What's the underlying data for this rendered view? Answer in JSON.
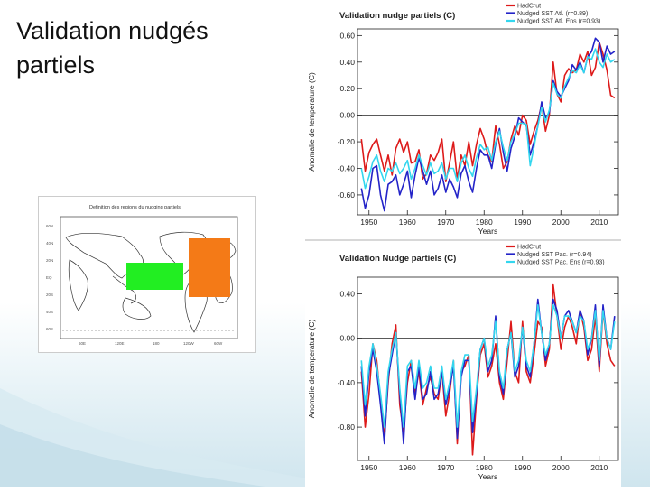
{
  "slide": {
    "title": "Validation nudgés partiels"
  },
  "map": {
    "title": "Definition des regions du nudging partiels",
    "lat_labels": [
      "60N",
      "40N",
      "20N",
      "EQ",
      "20S",
      "40S",
      "60S"
    ],
    "lon_labels": [
      "60E",
      "120E",
      "180",
      "120W",
      "60W"
    ],
    "colors": {
      "pacific": "#22ee22",
      "atlantic": "#f47a17"
    }
  },
  "chart_data": [
    {
      "type": "line",
      "title": "Validation nudge partiels (C)",
      "xlabel": "Years",
      "ylabel": "Anomalie de temperature (C)",
      "xlim": [
        1947,
        2015
      ],
      "ylim": [
        -0.75,
        0.65
      ],
      "yticks": [
        -0.6,
        -0.4,
        -0.2,
        0.0,
        0.2,
        0.4,
        0.6
      ],
      "ytick_labels": [
        "-0.60",
        "-0.40",
        "-0.20",
        "0.00",
        "0.20",
        "0.40",
        "0.60"
      ],
      "xticks": [
        1950,
        1960,
        1970,
        1980,
        1990,
        2000,
        2010
      ],
      "xtick_labels": [
        "1950",
        "1960",
        "1970",
        "1980",
        "1990",
        "2000",
        "2010"
      ],
      "legend_position": "top-right",
      "series": [
        {
          "name": "HadCrut",
          "color": "#dd1a1a",
          "start": 1948,
          "values": [
            -0.18,
            -0.42,
            -0.28,
            -0.22,
            -0.18,
            -0.3,
            -0.42,
            -0.3,
            -0.45,
            -0.25,
            -0.18,
            -0.28,
            -0.2,
            -0.36,
            -0.35,
            -0.26,
            -0.48,
            -0.44,
            -0.3,
            -0.34,
            -0.28,
            -0.18,
            -0.5,
            -0.36,
            -0.2,
            -0.48,
            -0.3,
            -0.38,
            -0.2,
            -0.38,
            -0.22,
            -0.1,
            -0.18,
            -0.3,
            -0.35,
            -0.08,
            -0.22,
            -0.4,
            -0.35,
            -0.18,
            -0.08,
            -0.15,
            0.0,
            -0.04,
            -0.22,
            -0.12,
            -0.04,
            0.08,
            -0.12,
            0.0,
            0.4,
            0.16,
            0.1,
            0.3,
            0.35,
            0.32,
            0.34,
            0.46,
            0.4,
            0.48,
            0.3,
            0.36,
            0.55,
            0.46,
            0.34,
            0.15,
            0.13
          ]
        },
        {
          "name": "Nudged SST Atl. (r=0.89)",
          "color": "#2323c8",
          "start": 1948,
          "values": [
            -0.55,
            -0.7,
            -0.6,
            -0.4,
            -0.38,
            -0.6,
            -0.72,
            -0.52,
            -0.5,
            -0.45,
            -0.6,
            -0.52,
            -0.42,
            -0.62,
            -0.45,
            -0.32,
            -0.42,
            -0.52,
            -0.42,
            -0.6,
            -0.55,
            -0.45,
            -0.58,
            -0.48,
            -0.54,
            -0.62,
            -0.44,
            -0.38,
            -0.5,
            -0.58,
            -0.4,
            -0.26,
            -0.3,
            -0.3,
            -0.4,
            -0.22,
            -0.1,
            -0.28,
            -0.42,
            -0.25,
            -0.16,
            -0.02,
            -0.05,
            -0.08,
            -0.3,
            -0.2,
            -0.08,
            0.1,
            -0.02,
            0.02,
            0.26,
            0.18,
            0.14,
            0.2,
            0.26,
            0.38,
            0.34,
            0.4,
            0.32,
            0.44,
            0.48,
            0.58,
            0.55,
            0.4,
            0.52,
            0.46,
            0.48
          ]
        },
        {
          "name": "Nudged SST Atl. Ens (r=0.93)",
          "color": "#33d6ee",
          "start": 1948,
          "values": [
            -0.4,
            -0.55,
            -0.46,
            -0.35,
            -0.3,
            -0.42,
            -0.5,
            -0.4,
            -0.42,
            -0.36,
            -0.44,
            -0.4,
            -0.34,
            -0.48,
            -0.4,
            -0.3,
            -0.38,
            -0.45,
            -0.36,
            -0.44,
            -0.42,
            -0.36,
            -0.48,
            -0.4,
            -0.4,
            -0.5,
            -0.36,
            -0.3,
            -0.4,
            -0.46,
            -0.32,
            -0.22,
            -0.26,
            -0.24,
            -0.34,
            -0.2,
            -0.12,
            -0.24,
            -0.34,
            -0.2,
            -0.14,
            -0.06,
            -0.06,
            -0.07,
            -0.38,
            -0.24,
            -0.08,
            0.06,
            -0.05,
            0.04,
            0.24,
            0.16,
            0.13,
            0.22,
            0.28,
            0.34,
            0.32,
            0.38,
            0.32,
            0.44,
            0.42,
            0.5,
            0.4,
            0.36,
            0.46,
            0.4,
            0.42
          ]
        }
      ]
    },
    {
      "type": "line",
      "title": "Validation Nudge partiels (C)",
      "xlabel": "Years",
      "ylabel": "Anomalie de temperature (C)",
      "xlim": [
        1947,
        2015
      ],
      "ylim": [
        -1.1,
        0.55
      ],
      "yticks": [
        -0.8,
        -0.4,
        0.0,
        0.4
      ],
      "ytick_labels": [
        "-0.80",
        "-0.40",
        "0.00",
        "0.40"
      ],
      "xticks": [
        1950,
        1960,
        1970,
        1980,
        1990,
        2000,
        2010
      ],
      "xtick_labels": [
        "1950",
        "1960",
        "1970",
        "1980",
        "1990",
        "2000",
        "2010"
      ],
      "legend_position": "top-right",
      "series": [
        {
          "name": "HadCrut",
          "color": "#dd1a1a",
          "start": 1948,
          "values": [
            -0.3,
            -0.8,
            -0.5,
            -0.05,
            -0.2,
            -0.55,
            -0.9,
            -0.4,
            -0.05,
            0.12,
            -0.6,
            -0.85,
            -0.4,
            -0.2,
            -0.5,
            -0.3,
            -0.6,
            -0.45,
            -0.35,
            -0.5,
            -0.55,
            -0.3,
            -0.7,
            -0.5,
            -0.2,
            -0.95,
            -0.3,
            -0.25,
            -0.15,
            -1.05,
            -0.55,
            -0.15,
            -0.05,
            -0.35,
            -0.25,
            -0.05,
            -0.4,
            -0.55,
            -0.2,
            0.15,
            -0.3,
            -0.4,
            0.15,
            -0.3,
            -0.4,
            -0.15,
            0.15,
            0.1,
            -0.25,
            -0.1,
            0.48,
            0.2,
            -0.1,
            0.1,
            0.2,
            0.1,
            -0.05,
            0.25,
            0.1,
            -0.2,
            -0.1,
            0.2,
            -0.3,
            0.25,
            -0.05,
            -0.2,
            -0.25
          ]
        },
        {
          "name": "Nudged SST Pac. (r=0.94)",
          "color": "#2323c8",
          "start": 1948,
          "values": [
            -0.25,
            -0.7,
            -0.3,
            -0.1,
            -0.3,
            -0.6,
            -0.95,
            -0.35,
            -0.15,
            0.05,
            -0.5,
            -0.95,
            -0.3,
            -0.25,
            -0.55,
            -0.25,
            -0.55,
            -0.5,
            -0.3,
            -0.55,
            -0.5,
            -0.3,
            -0.6,
            -0.45,
            -0.25,
            -0.9,
            -0.35,
            -0.2,
            -0.2,
            -0.85,
            -0.5,
            -0.1,
            0.0,
            -0.3,
            -0.2,
            0.2,
            -0.35,
            -0.5,
            -0.1,
            0.05,
            -0.35,
            -0.25,
            0.1,
            -0.25,
            -0.35,
            -0.05,
            0.35,
            0.05,
            -0.2,
            -0.05,
            0.35,
            0.25,
            0.0,
            0.2,
            0.25,
            0.15,
            0.05,
            0.25,
            0.15,
            -0.15,
            0.0,
            0.3,
            -0.25,
            0.3,
            0.0,
            -0.1,
            0.2
          ]
        },
        {
          "name": "Nudged SST Pac. Ens (r=0.93)",
          "color": "#33d6ee",
          "start": 1948,
          "values": [
            -0.2,
            -0.6,
            -0.25,
            -0.05,
            -0.25,
            -0.5,
            -0.8,
            -0.3,
            -0.1,
            0.05,
            -0.45,
            -0.8,
            -0.25,
            -0.2,
            -0.45,
            -0.2,
            -0.45,
            -0.4,
            -0.25,
            -0.45,
            -0.45,
            -0.25,
            -0.55,
            -0.4,
            -0.2,
            -0.8,
            -0.3,
            -0.15,
            -0.15,
            -0.75,
            -0.45,
            -0.1,
            0.0,
            -0.25,
            -0.15,
            0.15,
            -0.3,
            -0.45,
            -0.1,
            0.05,
            -0.3,
            -0.2,
            0.1,
            -0.2,
            -0.3,
            -0.05,
            0.3,
            0.05,
            -0.15,
            -0.05,
            0.3,
            0.2,
            0.0,
            0.2,
            0.2,
            0.15,
            0.05,
            0.2,
            0.15,
            -0.1,
            0.0,
            0.25,
            -0.2,
            0.25,
            0.0,
            -0.1,
            0.15
          ]
        }
      ]
    }
  ]
}
